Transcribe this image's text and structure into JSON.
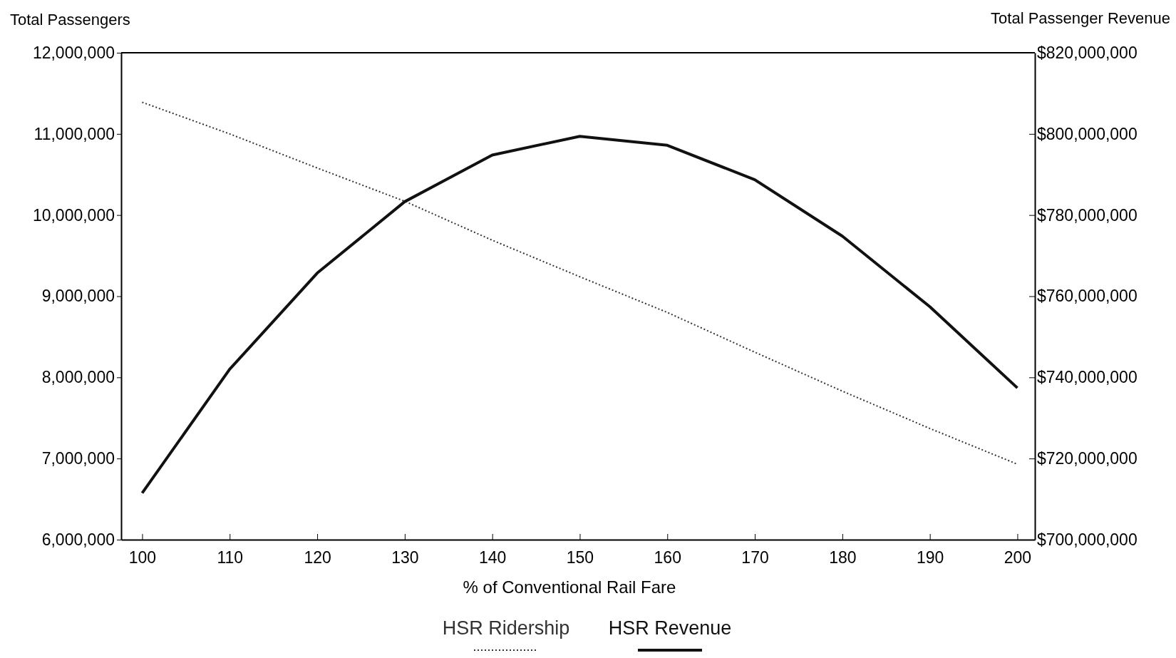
{
  "chart_data": {
    "type": "line",
    "xlabel": "% of Conventional Rail Fare",
    "ylabel": "Total Passengers",
    "y2label": "Total Passenger Revenue",
    "x": [
      100,
      110,
      120,
      130,
      140,
      150,
      160,
      170,
      180,
      190,
      200
    ],
    "xlim": [
      97.6,
      202
    ],
    "xticks": [
      100,
      110,
      120,
      130,
      140,
      150,
      160,
      170,
      180,
      190,
      200
    ],
    "ylim": [
      6000000,
      12000000
    ],
    "yticks": [
      {
        "value": 6000000,
        "label": "6,000,000"
      },
      {
        "value": 7000000,
        "label": "7,000,000"
      },
      {
        "value": 8000000,
        "label": "8,000,000"
      },
      {
        "value": 9000000,
        "label": "9,000,000"
      },
      {
        "value": 10000000,
        "label": "10,000,000"
      },
      {
        "value": 11000000,
        "label": "11,000,000"
      },
      {
        "value": 12000000,
        "label": "12,000,000"
      }
    ],
    "y2lim": [
      700000000,
      820000000
    ],
    "y2ticks": [
      {
        "value": 700000000,
        "label": "$700,000,000"
      },
      {
        "value": 720000000,
        "label": "$720,000,000"
      },
      {
        "value": 740000000,
        "label": "$740,000,000"
      },
      {
        "value": 760000000,
        "label": "$760,000,000"
      },
      {
        "value": 780000000,
        "label": "$780,000,000"
      },
      {
        "value": 800000000,
        "label": "$800,000,000"
      },
      {
        "value": 820000000,
        "label": "$820,000,000"
      }
    ],
    "series": [
      {
        "name": "HSR Ridership",
        "color": "#333333",
        "line_style": "dotted",
        "values": [
          11390000,
          11000000,
          10580000,
          10170000,
          9690000,
          9240000,
          8800000,
          8310000,
          7830000,
          7370000,
          6930000
        ]
      },
      {
        "name": "HSR Revenue",
        "color": "#111111",
        "line_style": "solid",
        "axis": "y2",
        "values": [
          711500000,
          742000000,
          765700000,
          783300000,
          794800000,
          799400000,
          797200000,
          788700000,
          774800000,
          757400000,
          737400000
        ]
      }
    ],
    "legend": "bottom",
    "grid": false,
    "marker": "none"
  }
}
